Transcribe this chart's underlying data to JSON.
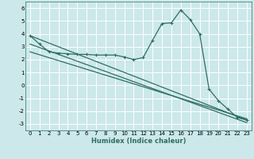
{
  "xlabel": "Humidex (Indice chaleur)",
  "ylabel": "",
  "background_color": "#cce8eb",
  "grid_color": "#ffffff",
  "line_color": "#2e6e62",
  "xlim": [
    -0.5,
    23.5
  ],
  "ylim": [
    -3.5,
    6.5
  ],
  "xticks": [
    0,
    1,
    2,
    3,
    4,
    5,
    6,
    7,
    8,
    9,
    10,
    11,
    12,
    13,
    14,
    15,
    16,
    17,
    18,
    19,
    20,
    21,
    22,
    23
  ],
  "yticks": [
    -3,
    -2,
    -1,
    0,
    1,
    2,
    3,
    4,
    5,
    6
  ],
  "curve1_x": [
    0,
    1,
    2,
    3,
    4,
    5,
    6,
    7,
    8,
    9,
    10,
    11,
    12,
    13,
    14,
    15,
    16,
    17,
    18,
    19,
    20,
    21,
    22,
    23
  ],
  "curve1_y": [
    3.85,
    3.2,
    2.6,
    2.5,
    2.45,
    2.4,
    2.4,
    2.35,
    2.35,
    2.35,
    2.2,
    2.0,
    2.15,
    3.5,
    4.8,
    4.85,
    5.85,
    5.1,
    4.0,
    -0.3,
    -1.2,
    -1.85,
    -2.5,
    -2.7
  ],
  "curve2_x": [
    0,
    23
  ],
  "curve2_y": [
    3.85,
    -2.7
  ],
  "curve3_x": [
    0,
    23
  ],
  "curve3_y": [
    3.2,
    -2.9
  ],
  "curve4_x": [
    0,
    23
  ],
  "curve4_y": [
    2.6,
    -2.6
  ],
  "marker": "+",
  "markersize": 3,
  "linewidth": 0.9
}
